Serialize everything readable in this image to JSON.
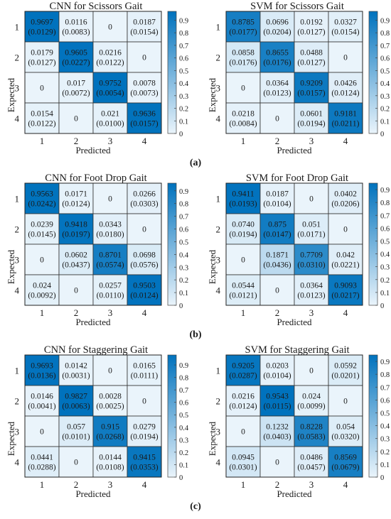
{
  "figure": {
    "panel_labels": [
      "(a)",
      "(b)",
      "(c)"
    ]
  },
  "colormap": {
    "low": "#eaf4fb",
    "high": "#0072bd"
  },
  "chart_data": [
    {
      "type": "heatmap",
      "title": "CNN for Scissors Gait",
      "xlabel": "Predicted",
      "ylabel": "Expected",
      "categories": [
        "1",
        "2",
        "3",
        "4"
      ],
      "values": [
        [
          0.9697,
          0.0116,
          0,
          0.0187
        ],
        [
          0.0179,
          0.9605,
          0.0216,
          0
        ],
        [
          0,
          0.017,
          0.9752,
          0.0078
        ],
        [
          0.0154,
          0,
          0.021,
          0.9636
        ]
      ],
      "labels": [
        [
          "0.9697",
          "0.0116",
          "0",
          "0.0187"
        ],
        [
          "0.0179",
          "0.9605",
          "0.0216",
          "0"
        ],
        [
          "0",
          "0.017",
          "0.9752",
          "0.0078"
        ],
        [
          "0.0154",
          "0",
          "0.021",
          "0.9636"
        ]
      ],
      "std": [
        [
          "(0.0129)",
          "(0.0083)",
          "",
          "(0.0154)"
        ],
        [
          "(0.0127)",
          "(0.0227)",
          "(0.0122)",
          ""
        ],
        [
          "",
          "(0.0072)",
          "(0.0054)",
          "(0.0073)"
        ],
        [
          "(0.0122)",
          "",
          "(0.0100)",
          "(0.0157)"
        ]
      ],
      "colorbar_ticks": [
        "0.9",
        "0.8",
        "0.7",
        "0.6",
        "0.5",
        "0.4",
        "0.3",
        "0.2",
        "0.1",
        "0"
      ],
      "colorbar_range": [
        0,
        0.97
      ]
    },
    {
      "type": "heatmap",
      "title": "SVM for Scissors Gait",
      "xlabel": "Predicted",
      "ylabel": "Expected",
      "categories": [
        "1",
        "2",
        "3",
        "4"
      ],
      "values": [
        [
          0.8785,
          0.0696,
          0.0192,
          0.0327
        ],
        [
          0.0858,
          0.8655,
          0.0488,
          0
        ],
        [
          0,
          0.0364,
          0.9209,
          0.0426
        ],
        [
          0.0218,
          0,
          0.0601,
          0.9181
        ]
      ],
      "labels": [
        [
          "0.8785",
          "0.0696",
          "0.0192",
          "0.0327"
        ],
        [
          "0.0858",
          "0.8655",
          "0.0488",
          "0"
        ],
        [
          "0",
          "0.0364",
          "0.9209",
          "0.0426"
        ],
        [
          "0.0218",
          "0",
          "0.0601",
          "0.9181"
        ]
      ],
      "std": [
        [
          "(0.0177)",
          "(0.0204)",
          "(0.0127)",
          "(0.0154)"
        ],
        [
          "(0.0176)",
          "(0.0176)",
          "(0.0127)",
          ""
        ],
        [
          "",
          "(0.0123)",
          "(0.0157)",
          "(0.0124)"
        ],
        [
          "(0.0084)",
          "",
          "(0.0194)",
          "(0.0211)"
        ]
      ],
      "colorbar_ticks": [
        "0.9",
        "0.8",
        "0.7",
        "0.6",
        "0.5",
        "0.4",
        "0.3",
        "0.2",
        "0.1",
        "0"
      ],
      "colorbar_range": [
        0,
        0.97
      ]
    },
    {
      "type": "heatmap",
      "title": "CNN for Foot Drop Gait",
      "xlabel": "Predicted",
      "ylabel": "Expected",
      "categories": [
        "1",
        "2",
        "3",
        "4"
      ],
      "values": [
        [
          0.9563,
          0.0171,
          0,
          0.0266
        ],
        [
          0.0239,
          0.9418,
          0.0343,
          0
        ],
        [
          0,
          0.0602,
          0.8701,
          0.0698
        ],
        [
          0.024,
          0,
          0.0257,
          0.9503
        ]
      ],
      "labels": [
        [
          "0.9563",
          "0.0171",
          "0",
          "0.0266"
        ],
        [
          "0.0239",
          "0.9418",
          "0.0343",
          "0"
        ],
        [
          "0",
          "0.0602",
          "0.8701",
          "0.0698"
        ],
        [
          "0.024",
          "0",
          "0.0257",
          "0.9503"
        ]
      ],
      "std": [
        [
          "(0.0242)",
          "(0.0124)",
          "",
          "(0.0303)"
        ],
        [
          "(0.0145)",
          "(0.0197)",
          "(0.0180)",
          ""
        ],
        [
          "",
          "(0.0437)",
          "(0.0574)",
          "(0.0576)"
        ],
        [
          "(0.0092)",
          "",
          "(0.0110)",
          "(0.0124)"
        ]
      ],
      "colorbar_ticks": [
        "0.9",
        "0.8",
        "0.7",
        "0.6",
        "0.5",
        "0.4",
        "0.3",
        "0.2",
        "0.1",
        "0"
      ],
      "colorbar_range": [
        0,
        0.96
      ]
    },
    {
      "type": "heatmap",
      "title": "SVM for Foot Drop Gait",
      "xlabel": "Predicted",
      "ylabel": "Expected",
      "categories": [
        "1",
        "2",
        "3",
        "4"
      ],
      "values": [
        [
          0.9411,
          0.0187,
          0,
          0.0402
        ],
        [
          0.074,
          0.875,
          0.051,
          0
        ],
        [
          0,
          0.1871,
          0.7709,
          0.042
        ],
        [
          0.0544,
          0,
          0.0364,
          0.9093
        ]
      ],
      "labels": [
        [
          "0.9411",
          "0.0187",
          "0",
          "0.0402"
        ],
        [
          "0.0740",
          "0.875",
          "0.051",
          "0"
        ],
        [
          "0",
          "0.1871",
          "0.7709",
          "0.042"
        ],
        [
          "0.0544",
          "0",
          "0.0364",
          "0.9093"
        ]
      ],
      "std": [
        [
          "(0.0193)",
          "(0.0104)",
          "",
          "(0.0206)"
        ],
        [
          "(0.0194)",
          "(0.0147)",
          "(0.0171)",
          ""
        ],
        [
          "",
          "(0.0436)",
          "(0.0310)",
          "(0.0221)"
        ],
        [
          "(0.0121)",
          "",
          "(0.0123)",
          "(0.0217)"
        ]
      ],
      "colorbar_ticks": [
        "0.9",
        "0.8",
        "0.7",
        "0.6",
        "0.5",
        "0.4",
        "0.3",
        "0.2",
        "0.1",
        "0"
      ],
      "colorbar_range": [
        0,
        0.95
      ]
    },
    {
      "type": "heatmap",
      "title": "CNN for Staggering Gait",
      "xlabel": "Predicted",
      "ylabel": "Expected",
      "categories": [
        "1",
        "2",
        "3",
        "4"
      ],
      "values": [
        [
          0.9693,
          0.0142,
          0,
          0.0165
        ],
        [
          0.0146,
          0.9827,
          0.0028,
          0
        ],
        [
          0,
          0.057,
          0.915,
          0.0279
        ],
        [
          0.0441,
          0,
          0.0144,
          0.9415
        ]
      ],
      "labels": [
        [
          "0.9693",
          "0.0142",
          "0",
          "0.0165"
        ],
        [
          "0.0146",
          "0.9827",
          "0.0028",
          "0"
        ],
        [
          "0",
          "0.057",
          "0.915",
          "0.0279"
        ],
        [
          "0.0441",
          "0",
          "0.0144",
          "0.9415"
        ]
      ],
      "std": [
        [
          "(0.0136)",
          "(0.0031)",
          "",
          "(0.0111)"
        ],
        [
          "(0.0041)",
          "(0.0063)",
          "(0.0025)",
          ""
        ],
        [
          "",
          "(0.0101)",
          "(0.0268)",
          "(0.0194)"
        ],
        [
          "(0.0288)",
          "",
          "(0.0108)",
          "(0.0353)"
        ]
      ],
      "colorbar_ticks": [
        "0.9",
        "0.8",
        "0.7",
        "0.6",
        "0.5",
        "0.4",
        "0.3",
        "0.2",
        "0.1",
        "0"
      ],
      "colorbar_range": [
        0,
        0.98
      ]
    },
    {
      "type": "heatmap",
      "title": "SVM for Staggering Gait",
      "xlabel": "Predicted",
      "ylabel": "Expected",
      "categories": [
        "1",
        "2",
        "3",
        "4"
      ],
      "values": [
        [
          0.9205,
          0.0203,
          0,
          0.0592
        ],
        [
          0.0216,
          0.9543,
          0.024,
          0
        ],
        [
          0,
          0.1232,
          0.8228,
          0.054
        ],
        [
          0.0945,
          0,
          0.0486,
          0.8569
        ]
      ],
      "labels": [
        [
          "0.9205",
          "0.0203",
          "0",
          "0.0592"
        ],
        [
          "0.0216",
          "0.9543",
          "0.024",
          "0"
        ],
        [
          "0",
          "0.1232",
          "0.8228",
          "0.054"
        ],
        [
          "0.0945",
          "0",
          "0.0486",
          "0.8569"
        ]
      ],
      "std": [
        [
          "(0.0287)",
          "(0.0104)",
          "",
          "(0.0201)"
        ],
        [
          "(0.0124)",
          "(0.0115)",
          "(0.0099)",
          ""
        ],
        [
          "",
          "(0.0403)",
          "(0.0583)",
          "(0.0320)"
        ],
        [
          "(0.0301)",
          "",
          "(0.0457)",
          "(0.0679)"
        ]
      ],
      "colorbar_ticks": [
        "0.9",
        "0.8",
        "0.7",
        "0.6",
        "0.5",
        "0.4",
        "0.3",
        "0.2",
        "0.1",
        "0"
      ],
      "colorbar_range": [
        0,
        0.95
      ]
    }
  ]
}
